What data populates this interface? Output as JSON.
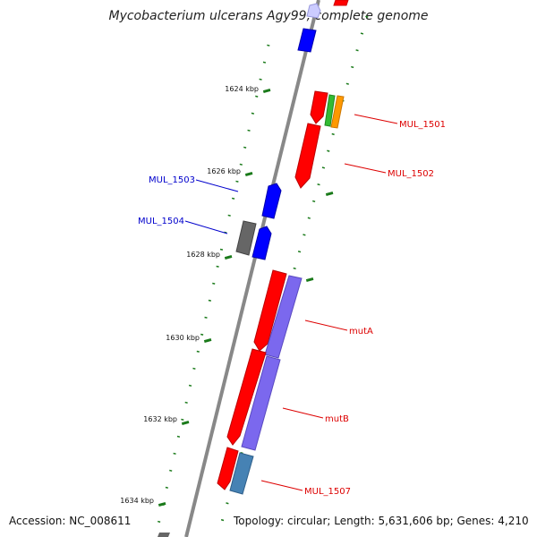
{
  "title": "Mycobacterium ulcerans Agy99, complete genome",
  "footer": {
    "accession": "Accession: NC_008611",
    "summary": "Topology: circular; Length: 5,631,606 bp; Genes: 4,210"
  },
  "ticks": [
    "1624 kbp",
    "1626 kbp",
    "1628 kbp",
    "1630 kbp",
    "1632 kbp",
    "1634 kbp"
  ],
  "genes": [
    {
      "label": "MUL_1501",
      "color": "#dd0000"
    },
    {
      "label": "MUL_1502",
      "color": "#dd0000"
    },
    {
      "label": "MUL_1503",
      "color": "#0000cc"
    },
    {
      "label": "MUL_1504",
      "color": "#0000cc"
    },
    {
      "label": "mutA",
      "color": "#dd0000"
    },
    {
      "label": "mutB",
      "color": "#dd0000"
    },
    {
      "label": "MUL_1507",
      "color": "#dd0000"
    }
  ],
  "colors": {
    "forward_cds": "#ff0000",
    "reverse_cds": "#0000ff",
    "backbone": "#888888",
    "dotted_guide": "#1a7a1a",
    "mutase_overlay": "#7b68ee",
    "other_overlay": "#4682b4",
    "gray_feature": "#666666",
    "green_feature": "#33bb33",
    "orange_feature": "#ff9900"
  }
}
